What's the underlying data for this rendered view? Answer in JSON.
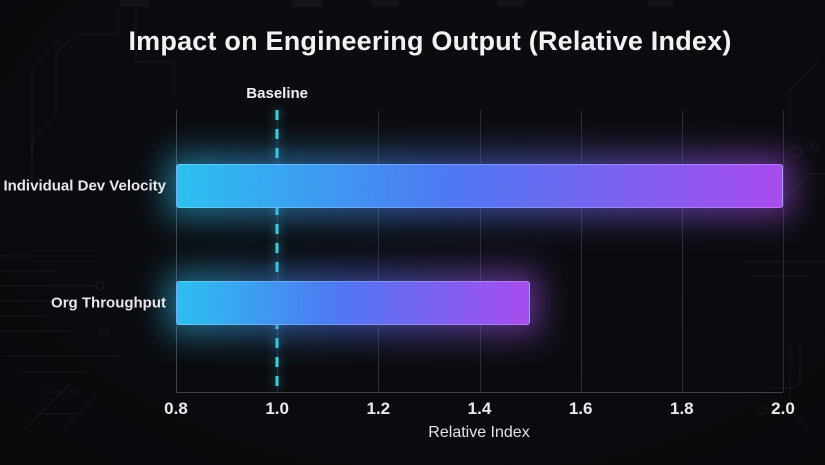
{
  "header": {
    "title": "Impact on Engineering Output (Relative Index)"
  },
  "colors": {
    "background": "#0a0b0e",
    "bar_gradient_start": "#2cc2f0",
    "bar_gradient_mid": "#4e79f2",
    "bar_gradient_end": "#aa4cee",
    "baseline_line": "#38d2e2",
    "gridline": "#2a2b33",
    "axis_line": "#41434c",
    "text": "#ededf0"
  },
  "chart_data": {
    "type": "bar",
    "orientation": "horizontal",
    "title": "Impact on Engineering Output (Relative Index)",
    "categories": [
      "Individual Dev Velocity",
      "Org Throughput"
    ],
    "values": [
      2.0,
      1.5
    ],
    "xlabel": "Relative Index",
    "xlim": [
      0.8,
      2.0
    ],
    "xticks": [
      0.8,
      1.0,
      1.2,
      1.4,
      1.6,
      1.8,
      2.0
    ],
    "baseline": {
      "value": 1.0,
      "label": "Baseline"
    },
    "grid": true,
    "legend": false
  }
}
